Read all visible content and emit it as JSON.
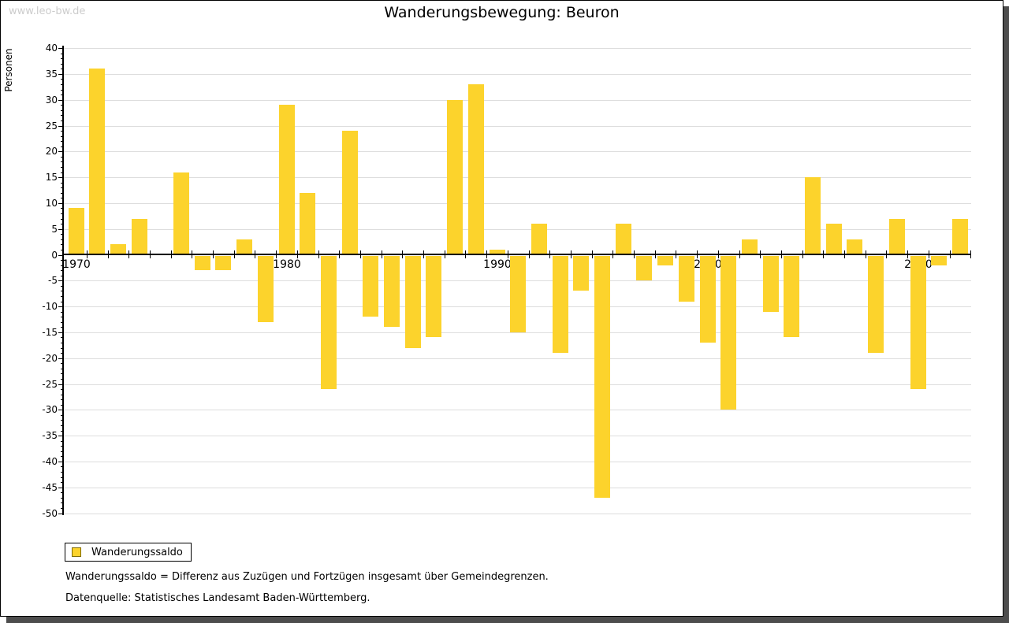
{
  "watermark": "www.leo-bw.de",
  "title": "Wanderungsbewegung: Beuron",
  "legend": {
    "label": "Wanderungssaldo"
  },
  "footer": {
    "line1": "Wanderungssaldo = Differenz aus Zuzügen und Fortzügen insgesamt über Gemeindegrenzen.",
    "line2": "Datenquelle: Statistisches Landesamt Baden-Württemberg."
  },
  "colors": {
    "bar": "#fcd32c",
    "grid": "#dddddd",
    "axis": "#000000",
    "watermark": "#cccccc",
    "legend_swatch_border": "#7f6a00"
  },
  "chart_data": {
    "type": "bar",
    "title": "Wanderungsbewegung: Beuron",
    "xlabel": "",
    "ylabel": "Personen",
    "ylim": [
      -50,
      40
    ],
    "y_tick_step": 5,
    "y_minor_tick_step": 1,
    "grid": true,
    "legend_entries": [
      "Wanderungssaldo"
    ],
    "legend_position": "bottom-left",
    "x_tick_labels": [
      "1970",
      "1980",
      "1990",
      "2000",
      "2010"
    ],
    "categories": [
      1970,
      1971,
      1972,
      1973,
      1974,
      1975,
      1976,
      1977,
      1978,
      1979,
      1980,
      1981,
      1982,
      1983,
      1984,
      1985,
      1986,
      1987,
      1988,
      1989,
      1990,
      1991,
      1992,
      1993,
      1994,
      1995,
      1996,
      1997,
      1998,
      1999,
      2000,
      2001,
      2002,
      2003,
      2004,
      2005,
      2006,
      2007,
      2008,
      2009,
      2010,
      2011,
      2012
    ],
    "values": [
      9,
      36,
      2,
      7,
      0,
      16,
      -3,
      -3,
      3,
      -13,
      29,
      12,
      -26,
      24,
      -12,
      -14,
      -18,
      -16,
      30,
      33,
      1,
      -15,
      6,
      -19,
      -7,
      -47,
      6,
      -5,
      -2,
      -9,
      -17,
      -30,
      3,
      -11,
      -16,
      15,
      6,
      3,
      -19,
      7,
      -26,
      -2,
      7
    ],
    "series": [
      {
        "name": "Wanderungssaldo",
        "values": [
          9,
          36,
          2,
          7,
          0,
          16,
          -3,
          -3,
          3,
          -13,
          29,
          12,
          -26,
          24,
          -12,
          -14,
          -18,
          -16,
          30,
          33,
          1,
          -15,
          6,
          -19,
          -7,
          -47,
          6,
          -5,
          -2,
          -9,
          -17,
          -30,
          3,
          -11,
          -16,
          15,
          6,
          3,
          -19,
          7,
          -26,
          -2,
          7
        ]
      }
    ]
  }
}
